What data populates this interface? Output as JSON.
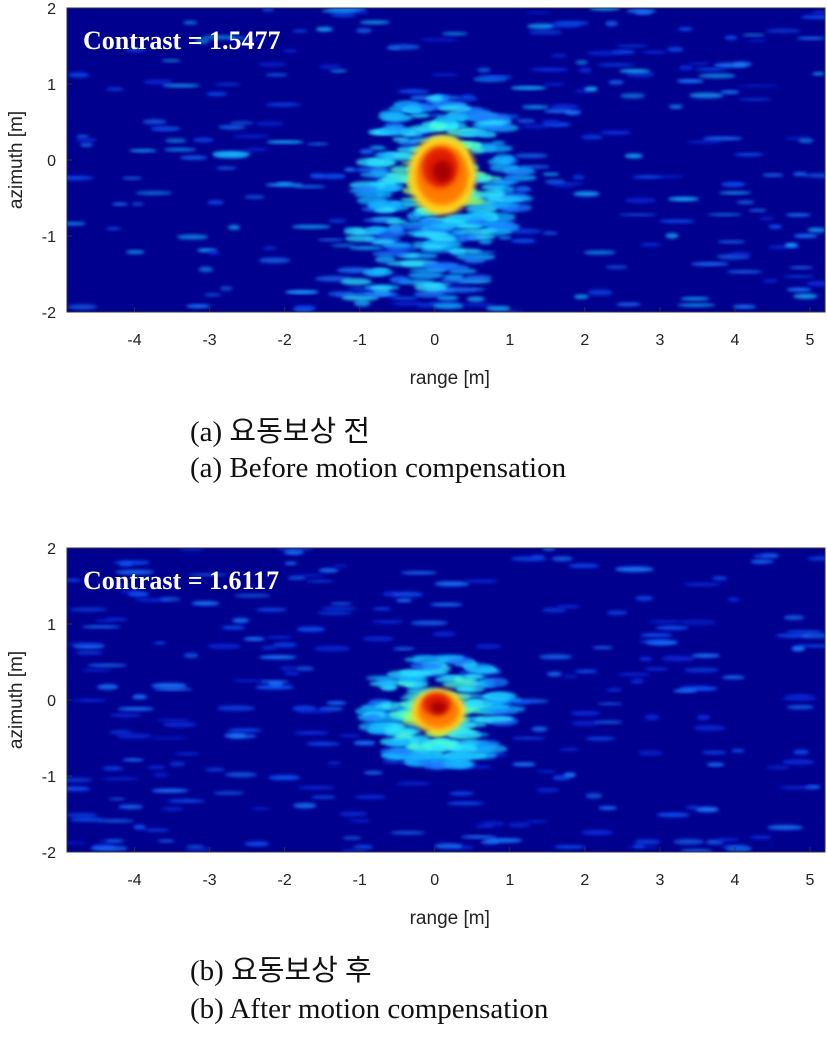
{
  "chart_data": [
    {
      "type": "heatmap",
      "title": "",
      "annotation": "Contrast = 1.5477",
      "xlabel": "range [m]",
      "ylabel": "azimuth [m]",
      "xlim": [
        -4.9,
        5.2
      ],
      "ylim": [
        -2,
        2
      ],
      "xticks": [
        -4,
        -3,
        -2,
        -1,
        0,
        1,
        2,
        3,
        4,
        5
      ],
      "yticks": [
        -2,
        -1,
        0,
        1,
        2
      ],
      "colormap": "jet",
      "background_color": "#00008f",
      "peak": {
        "x": 0.1,
        "y": -0.2
      },
      "caption_ko": "(a) 요동보상 전",
      "caption_en": "(a) Before motion compensation"
    },
    {
      "type": "heatmap",
      "title": "",
      "annotation": "Contrast = 1.6117",
      "xlabel": "range [m]",
      "ylabel": "azimuth [m]",
      "xlim": [
        -4.9,
        5.2
      ],
      "ylim": [
        -2,
        2
      ],
      "xticks": [
        -4,
        -3,
        -2,
        -1,
        0,
        1,
        2,
        3,
        4,
        5
      ],
      "yticks": [
        -2,
        -1,
        0,
        1,
        2
      ],
      "colormap": "jet",
      "background_color": "#00008f",
      "peak": {
        "x": 0.05,
        "y": -0.15
      },
      "caption_ko": "(b) 요동보상 후",
      "caption_en": "(b) After motion compensation"
    }
  ]
}
